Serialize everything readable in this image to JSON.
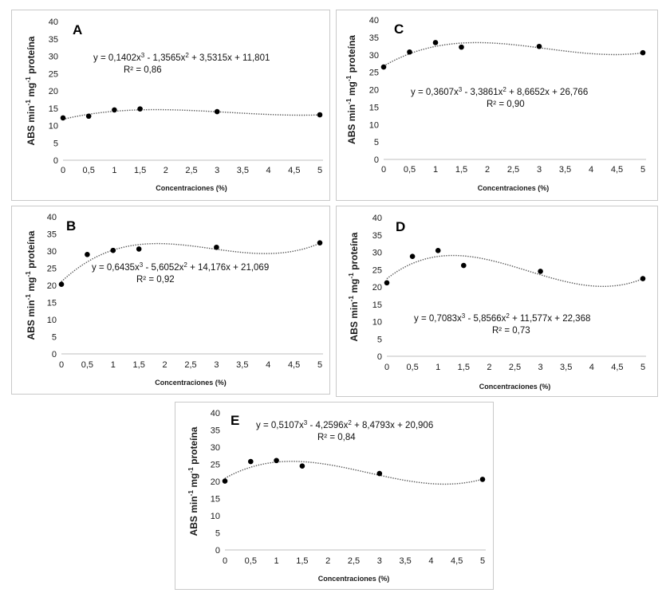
{
  "chart_data": [
    {
      "type": "scatter",
      "letter": "A",
      "x": [
        0,
        0.5,
        1,
        1.5,
        3,
        5
      ],
      "y": [
        12.2,
        12.7,
        14.5,
        14.8,
        14.0,
        13.1
      ],
      "trend": {
        "type": "polynomial",
        "a3": 0.1402,
        "a2": -1.3565,
        "a1": 3.5315,
        "a0": 11.801
      },
      "equation_parts": [
        "y = 0,1402x",
        "3",
        " - 1,3565x",
        "2",
        " + 3,5315x + 11,801"
      ],
      "r2": "R² = 0,86",
      "xlabel": "Concentraciones (%)",
      "ylabel_parts": [
        "ABS min",
        "-1",
        " mg",
        "-1",
        " proteína"
      ],
      "xticks": [
        "0",
        "0,5",
        "1",
        "1,5",
        "2",
        "2,5",
        "3",
        "3,5",
        "4",
        "4,5",
        "5"
      ],
      "yticks": [
        "0",
        "5",
        "10",
        "15",
        "20",
        "25",
        "30",
        "35",
        "40"
      ],
      "xlim": [
        0,
        5
      ],
      "ylim": [
        0,
        40
      ],
      "grid": false
    },
    {
      "type": "scatter",
      "letter": "C",
      "x": [
        0,
        0.5,
        1,
        1.5,
        3,
        5
      ],
      "y": [
        26.5,
        30.8,
        33.5,
        32.2,
        32.4,
        30.6
      ],
      "trend": {
        "type": "polynomial",
        "a3": 0.3607,
        "a2": -3.3861,
        "a1": 8.6652,
        "a0": 26.766
      },
      "equation_parts": [
        "y = 0,3607x",
        "3",
        " - 3,3861x",
        "2",
        " + 8,6652x + 26,766"
      ],
      "r2": "R² = 0,90",
      "xlabel": "Concentraciones (%)",
      "ylabel_parts": [
        "ABS min",
        "-1",
        " mg",
        "-1",
        " proteína"
      ],
      "xticks": [
        "0",
        "0,5",
        "1",
        "1,5",
        "2",
        "2,5",
        "3",
        "3,5",
        "4",
        "4,5",
        "5"
      ],
      "yticks": [
        "0",
        "5",
        "10",
        "15",
        "20",
        "25",
        "30",
        "35",
        "40"
      ],
      "xlim": [
        0,
        5
      ],
      "ylim": [
        0,
        40
      ],
      "grid": false
    },
    {
      "type": "scatter",
      "letter": "B",
      "x": [
        0,
        0.5,
        1,
        1.5,
        3,
        5
      ],
      "y": [
        20.3,
        29.0,
        30.2,
        30.6,
        31.1,
        32.4
      ],
      "trend": {
        "type": "polynomial",
        "a3": 0.6435,
        "a2": -5.6052,
        "a1": 14.176,
        "a0": 21.069
      },
      "equation_parts": [
        "y = 0,6435x",
        "3",
        " - 5,6052x",
        "2",
        " + 14,176x + 21,069"
      ],
      "r2": "R² = 0,92",
      "xlabel": "Concentraciones (%)",
      "ylabel_parts": [
        "ABS min",
        "-1",
        " mg",
        "-1",
        " proteína"
      ],
      "xticks": [
        "0",
        "0,5",
        "1",
        "1,5",
        "2",
        "2,5",
        "3",
        "3,5",
        "4",
        "4,5",
        "5"
      ],
      "yticks": [
        "0",
        "5",
        "10",
        "15",
        "20",
        "25",
        "30",
        "35",
        "40"
      ],
      "xlim": [
        0,
        5
      ],
      "ylim": [
        0,
        40
      ],
      "grid": false
    },
    {
      "type": "scatter",
      "letter": "D",
      "x": [
        0,
        0.5,
        1,
        1.5,
        3,
        5
      ],
      "y": [
        21.2,
        28.8,
        30.5,
        26.2,
        24.5,
        22.4
      ],
      "trend": {
        "type": "polynomial",
        "a3": 0.7083,
        "a2": -5.8566,
        "a1": 11.577,
        "a0": 22.368
      },
      "equation_parts": [
        "y = 0,7083x",
        "3",
        " - 5,8566x",
        "2",
        " + 11,577x + 22,368"
      ],
      "r2": "R² = 0,73",
      "xlabel": "Concentraciones (%)",
      "ylabel_parts": [
        "ABS min",
        "-1",
        " mg",
        "-1",
        " proteína"
      ],
      "xticks": [
        "0",
        "0,5",
        "1",
        "1,5",
        "2",
        "2,5",
        "3",
        "3,5",
        "4",
        "4,5",
        "5"
      ],
      "yticks": [
        "0",
        "5",
        "10",
        "15",
        "20",
        "25",
        "30",
        "35",
        "40"
      ],
      "xlim": [
        0,
        5
      ],
      "ylim": [
        0,
        40
      ],
      "grid": false
    },
    {
      "type": "scatter",
      "letter": "E",
      "x": [
        0,
        0.5,
        1,
        1.5,
        3,
        5
      ],
      "y": [
        20.1,
        25.8,
        26.1,
        24.5,
        22.3,
        20.6
      ],
      "trend": {
        "type": "polynomial",
        "a3": 0.5107,
        "a2": -4.2596,
        "a1": 8.4793,
        "a0": 20.906
      },
      "equation_parts": [
        "y = 0,5107x",
        "3",
        " - 4,2596x",
        "2",
        " + 8,4793x + 20,906"
      ],
      "r2": "R² = 0,84",
      "xlabel": "Concentraciones (%)",
      "ylabel_parts": [
        "ABS min",
        "-1",
        " mg",
        "-1",
        " proteína"
      ],
      "xticks": [
        "0",
        "0,5",
        "1",
        "1,5",
        "2",
        "2,5",
        "3",
        "3,5",
        "4",
        "4,5",
        "5"
      ],
      "yticks": [
        "0",
        "5",
        "10",
        "15",
        "20",
        "25",
        "30",
        "35",
        "40"
      ],
      "xlim": [
        0,
        5
      ],
      "ylim": [
        0,
        40
      ],
      "grid": false
    }
  ],
  "colors": {
    "marker": "#000000",
    "trendline": "#555555",
    "axis": "#bfbfbf",
    "border": "#c9c9c9"
  }
}
